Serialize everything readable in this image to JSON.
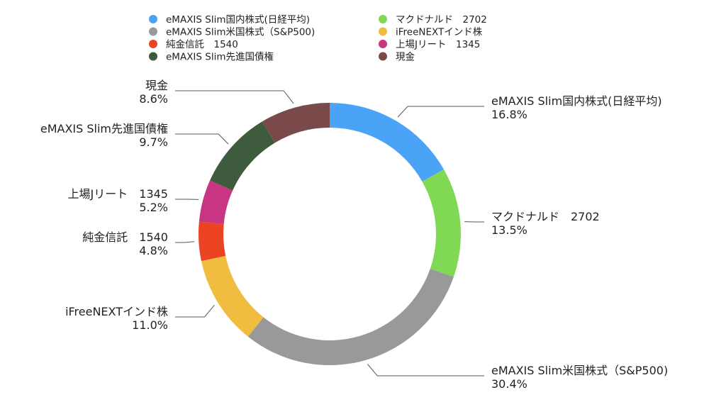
{
  "chart_data": {
    "type": "donut",
    "title": "",
    "legend_placement": "top",
    "slices": [
      {
        "label": "eMAXIS Slim国内株式(日経平均)",
        "value": 16.8,
        "display": "16.8%",
        "color": "#4aa3f7"
      },
      {
        "label": "マクドナルド　2702",
        "value": 13.5,
        "display": "13.5%",
        "color": "#80d855"
      },
      {
        "label": "eMAXIS Slim米国株式（S&P500)",
        "value": 30.4,
        "display": "30.4%",
        "color": "#999999"
      },
      {
        "label": "iFreeNEXTインド株",
        "value": 11.0,
        "display": "11.0%",
        "color": "#f0bd40"
      },
      {
        "label": "純金信託　1540",
        "value": 4.8,
        "display": "4.8%",
        "color": "#ec4325"
      },
      {
        "label": "上場Jリート　1345",
        "value": 5.2,
        "display": "5.2%",
        "color": "#c83682"
      },
      {
        "label": "eMAXIS Slim先進国債権",
        "value": 9.7,
        "display": "9.7%",
        "color": "#3e5b3d"
      },
      {
        "label": "現金",
        "value": 8.6,
        "display": "8.6%",
        "color": "#7a4a4a"
      }
    ],
    "legend": [
      {
        "label": "eMAXIS Slim国内株式(日経平均)",
        "color": "#4aa3f7"
      },
      {
        "label": "eMAXIS Slim米国株式（S&P500)",
        "color": "#999999"
      },
      {
        "label": "純金信託　1540",
        "color": "#ec4325"
      },
      {
        "label": "eMAXIS Slim先進国債権",
        "color": "#3e5b3d"
      },
      {
        "label": "マクドナルド　2702",
        "color": "#80d855"
      },
      {
        "label": "iFreeNEXTインド株",
        "color": "#f0bd40"
      },
      {
        "label": "上場Jリート　1345",
        "color": "#c83682"
      },
      {
        "label": "現金",
        "color": "#7a4a4a"
      }
    ]
  }
}
